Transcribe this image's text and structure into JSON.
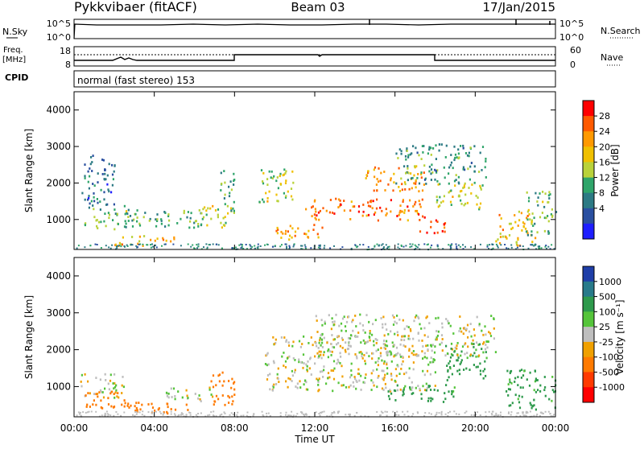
{
  "header": {
    "station": "Pykkvibaer (fitACF)",
    "beam": "Beam 03",
    "date": "17/Jan/2015"
  },
  "nsky_panel": {
    "left_label": "N.Sky",
    "left_ticks": [
      "10^5",
      "10^0"
    ],
    "right_label": "N.Search",
    "right_ticks": [
      "10^5",
      "10^0"
    ]
  },
  "freq_panel": {
    "left_label_line1": "Freq.",
    "left_label_line2": "[MHz]",
    "left_ticks": [
      "18",
      "8"
    ],
    "right_label": "Nave",
    "right_ticks": [
      "60",
      "0"
    ]
  },
  "cpid_panel": {
    "label": "CPID",
    "mode": "normal (fast stereo) 153"
  },
  "x_axis": {
    "label": "Time UT",
    "ticks": [
      "00:00",
      "04:00",
      "08:00",
      "12:00",
      "16:00",
      "20:00",
      "00:00"
    ]
  },
  "chart_data": [
    {
      "type": "heatmap",
      "quantity": "power",
      "xlabel": "Time UT",
      "ylabel": "Slant Range [km]",
      "xlim": [
        0,
        24
      ],
      "ylim": [
        180,
        4500
      ],
      "y_ticks": [
        1000,
        2000,
        3000,
        4000
      ],
      "colorbar": {
        "label": "Power [dB]",
        "ticks": [
          "28",
          "24",
          "20",
          "16",
          "12",
          "8",
          "4"
        ],
        "colors": [
          "#ff0000",
          "#ff5a00",
          "#ff9900",
          "#f0c000",
          "#b9d23a",
          "#2fa56a",
          "#2c7a84",
          "#2a4fa0",
          "#1e1eff"
        ]
      },
      "blobs": [
        {
          "t0": 0.5,
          "t1": 3.0,
          "r0": 700,
          "r1": 1400,
          "dB": 12
        },
        {
          "t0": 0.3,
          "t1": 2.0,
          "r0": 1400,
          "r1": 2800,
          "dB": 6
        },
        {
          "t0": 2.0,
          "t1": 5.0,
          "r0": 300,
          "r1": 600,
          "dB": 20
        },
        {
          "t0": 3.0,
          "t1": 6.5,
          "r0": 800,
          "r1": 1300,
          "dB": 12
        },
        {
          "t0": 6.0,
          "t1": 7.8,
          "r0": 800,
          "r1": 1400,
          "dB": 16
        },
        {
          "t0": 7.2,
          "t1": 8.0,
          "r0": 1200,
          "r1": 2400,
          "dB": 10
        },
        {
          "t0": 9.2,
          "t1": 11.0,
          "r0": 1500,
          "r1": 2500,
          "dB": 16
        },
        {
          "t0": 10.0,
          "t1": 12.5,
          "r0": 450,
          "r1": 900,
          "dB": 22
        },
        {
          "t0": 11.5,
          "t1": 17.5,
          "r0": 1000,
          "r1": 1600,
          "dB": 25
        },
        {
          "t0": 14.5,
          "t1": 17.5,
          "r0": 1800,
          "r1": 2500,
          "dB": 22
        },
        {
          "t0": 16.0,
          "t1": 20.5,
          "r0": 2000,
          "r1": 3100,
          "dB": 10
        },
        {
          "t0": 17.0,
          "t1": 18.5,
          "r0": 650,
          "r1": 1100,
          "dB": 28
        },
        {
          "t0": 18.0,
          "t1": 20.5,
          "r0": 1300,
          "r1": 2000,
          "dB": 16
        },
        {
          "t0": 21.0,
          "t1": 23.0,
          "r0": 300,
          "r1": 1300,
          "dB": 20
        },
        {
          "t0": 22.5,
          "t1": 24.0,
          "r0": 600,
          "r1": 1800,
          "dB": 12
        }
      ]
    },
    {
      "type": "heatmap",
      "quantity": "velocity",
      "xlabel": "Time UT",
      "ylabel": "Slant Range [km]",
      "xlim": [
        0,
        24
      ],
      "ylim": [
        180,
        4500
      ],
      "y_ticks": [
        1000,
        2000,
        3000,
        4000
      ],
      "colorbar": {
        "label": "Velocity [m s⁻¹]",
        "ticks": [
          "1000",
          "500",
          "100",
          "25",
          "-25",
          "-100",
          "-500",
          "-1000"
        ],
        "colors": [
          "#1f3ea8",
          "#287a8a",
          "#2e9a4c",
          "#55c43a",
          "#bebebe",
          "#f0a000",
          "#ff7a00",
          "#ff3a00",
          "#ff0000"
        ]
      },
      "blobs": [
        {
          "t0": 0.3,
          "t1": 2.5,
          "r0": 700,
          "r1": 1400,
          "v": 0
        },
        {
          "t0": 0.5,
          "t1": 3.0,
          "r0": 400,
          "r1": 900,
          "v": -300
        },
        {
          "t0": 2.5,
          "t1": 6.0,
          "r0": 300,
          "r1": 600,
          "v": -200
        },
        {
          "t0": 4.5,
          "t1": 7.0,
          "r0": 600,
          "r1": 1000,
          "v": 0
        },
        {
          "t0": 6.8,
          "t1": 8.0,
          "r0": 500,
          "r1": 1500,
          "v": -300
        },
        {
          "t0": 9.5,
          "t1": 18.0,
          "r0": 900,
          "r1": 2400,
          "v": 0
        },
        {
          "t0": 12.0,
          "t1": 21.0,
          "r0": 1800,
          "r1": 3000,
          "v": 0
        },
        {
          "t0": 15.5,
          "t1": 19.0,
          "r0": 600,
          "r1": 1100,
          "v": 150
        },
        {
          "t0": 18.5,
          "t1": 20.5,
          "r0": 1200,
          "r1": 2200,
          "v": 150
        },
        {
          "t0": 21.5,
          "t1": 24.0,
          "r0": 400,
          "r1": 1500,
          "v": 150
        }
      ]
    }
  ]
}
